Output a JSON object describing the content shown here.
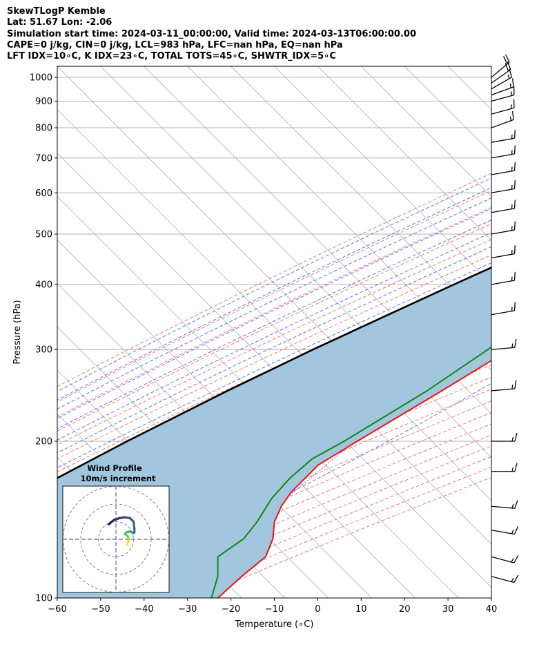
{
  "header": {
    "line1": "SkewTLogP Kemble",
    "line2": "Lat: 51.67   Lon: -2.06",
    "line3": "Simulation start time: 2024-03-11_00:00:00, Valid time: 2024-03-13T06:00:00.00",
    "line4": "CAPE=0 j/kg, CIN=0 j/kg, LCL=983 hPa, LFC=nan hPa, EQ=nan hPa",
    "line5": "LFT IDX=10∘C, K IDX=23∘C, TOTAL TOTS=45∘C, SHWTR_IDX=5∘C"
  },
  "chart_data": {
    "type": "line",
    "subtype": "skew-t log-p",
    "xlabel": "Temperature (∘C)",
    "ylabel": "Pressure (hPa)",
    "xlim": [
      -60,
      40
    ],
    "ylim": [
      1050,
      100
    ],
    "y_scale": "log",
    "x_ticks": [
      -60,
      -50,
      -40,
      -30,
      -20,
      -10,
      0,
      10,
      20,
      30,
      40
    ],
    "x_tick_labels": [
      "−60",
      "−50",
      "−40",
      "−30",
      "−20",
      "−10",
      "0",
      "10",
      "20",
      "30",
      "40"
    ],
    "y_ticks": [
      1000,
      900,
      800,
      700,
      600,
      500,
      400,
      300,
      200,
      100
    ],
    "y_tick_labels": [
      "1000",
      "900",
      "800",
      "700",
      "600",
      "500",
      "400",
      "300",
      "200",
      "100"
    ],
    "grid": true,
    "colors": {
      "temperature": "#ee1111",
      "dewpoint": "#118811",
      "parcel": "#000000",
      "shade": "#a2c6de",
      "dry_adiabats": "#f07878",
      "moist_adiabats": "#6a6af0",
      "mixing_ratio": "#9a44b4",
      "isotherms": "#b4b4b4"
    },
    "series": [
      {
        "role": "temperature",
        "points": [
          [
            985,
            10.2
          ],
          [
            950,
            10.5
          ],
          [
            900,
            11.2
          ],
          [
            850,
            11.4
          ],
          [
            800,
            10.8
          ],
          [
            750,
            9.8
          ],
          [
            700,
            8.7
          ],
          [
            650,
            6.6
          ],
          [
            600,
            4.4
          ],
          [
            550,
            3.6
          ],
          [
            500,
            2.7
          ],
          [
            450,
            0.3
          ],
          [
            400,
            -3.2
          ],
          [
            350,
            -7.9
          ],
          [
            300,
            -13.0
          ],
          [
            250,
            -19.1
          ],
          [
            200,
            -27.0
          ],
          [
            180,
            -30.5
          ],
          [
            160,
            -30.5
          ],
          [
            150,
            -29.5
          ],
          [
            140,
            -27.5
          ],
          [
            130,
            -24.0
          ],
          [
            120,
            -21.5
          ],
          [
            110,
            -22.5
          ],
          [
            100,
            -23.0
          ]
        ]
      },
      {
        "role": "dewpoint",
        "points": [
          [
            985,
            9.2
          ],
          [
            950,
            8.8
          ],
          [
            900,
            8.8
          ],
          [
            850,
            7.7
          ],
          [
            800,
            5.5
          ],
          [
            750,
            2.7
          ],
          [
            700,
            0.2
          ],
          [
            650,
            -1.0
          ],
          [
            600,
            -1.6
          ],
          [
            550,
            -1.6
          ],
          [
            500,
            -1.7
          ],
          [
            450,
            -3.5
          ],
          [
            400,
            -8.0
          ],
          [
            350,
            -14.5
          ],
          [
            300,
            -18.0
          ],
          [
            250,
            -22.5
          ],
          [
            200,
            -30.0
          ],
          [
            185,
            -33.3
          ],
          [
            170,
            -34.0
          ],
          [
            155,
            -33.5
          ],
          [
            140,
            -31.5
          ],
          [
            130,
            -30.7
          ],
          [
            120,
            -32.5
          ],
          [
            110,
            -28.0
          ],
          [
            100,
            -24.5
          ]
        ]
      },
      {
        "role": "parcel",
        "points": [
          [
            985,
            10.2
          ],
          [
            983,
            10.1
          ],
          [
            950,
            8.3
          ],
          [
            900,
            5.6
          ],
          [
            850,
            2.7
          ],
          [
            800,
            -0.3
          ],
          [
            750,
            -3.7
          ],
          [
            700,
            -7.3
          ],
          [
            650,
            -11.3
          ],
          [
            600,
            -15.8
          ],
          [
            550,
            -21.0
          ],
          [
            500,
            -26.9
          ],
          [
            450,
            -33.4
          ],
          [
            400,
            -40.8
          ],
          [
            350,
            -49.0
          ],
          [
            300,
            -58.3
          ],
          [
            250,
            -68.5
          ],
          [
            200,
            -80.0
          ],
          [
            150,
            -93.5
          ],
          [
            100,
            -110.5
          ]
        ]
      }
    ],
    "wind_barbs": [
      {
        "p": 1000,
        "speed_kt": 20,
        "dir_deg": 230
      },
      {
        "p": 975,
        "speed_kt": 20,
        "dir_deg": 235
      },
      {
        "p": 950,
        "speed_kt": 15,
        "dir_deg": 240
      },
      {
        "p": 925,
        "speed_kt": 15,
        "dir_deg": 250
      },
      {
        "p": 900,
        "speed_kt": 15,
        "dir_deg": 255
      },
      {
        "p": 850,
        "speed_kt": 15,
        "dir_deg": 255
      },
      {
        "p": 800,
        "speed_kt": 15,
        "dir_deg": 250
      },
      {
        "p": 750,
        "speed_kt": 15,
        "dir_deg": 260
      },
      {
        "p": 700,
        "speed_kt": 15,
        "dir_deg": 260
      },
      {
        "p": 650,
        "speed_kt": 15,
        "dir_deg": 260
      },
      {
        "p": 600,
        "speed_kt": 15,
        "dir_deg": 260
      },
      {
        "p": 550,
        "speed_kt": 15,
        "dir_deg": 260
      },
      {
        "p": 500,
        "speed_kt": 15,
        "dir_deg": 260
      },
      {
        "p": 450,
        "speed_kt": 15,
        "dir_deg": 260
      },
      {
        "p": 400,
        "speed_kt": 15,
        "dir_deg": 260
      },
      {
        "p": 350,
        "speed_kt": 15,
        "dir_deg": 260
      },
      {
        "p": 300,
        "speed_kt": 15,
        "dir_deg": 265
      },
      {
        "p": 250,
        "speed_kt": 15,
        "dir_deg": 265
      },
      {
        "p": 200,
        "speed_kt": 15,
        "dir_deg": 270
      },
      {
        "p": 175,
        "speed_kt": 15,
        "dir_deg": 270
      },
      {
        "p": 150,
        "speed_kt": 15,
        "dir_deg": 275
      },
      {
        "p": 135,
        "speed_kt": 15,
        "dir_deg": 280
      },
      {
        "p": 120,
        "speed_kt": 15,
        "dir_deg": 285
      },
      {
        "p": 110,
        "speed_kt": 15,
        "dir_deg": 285
      }
    ],
    "inset": {
      "title": "Wind Profile",
      "subtitle": "10m/s increment",
      "rings_ms": [
        10,
        20,
        30
      ],
      "hodograph_colormap": [
        "#fde725",
        "#5ec962",
        "#21918c",
        "#3b528b",
        "#440154"
      ],
      "hodograph_points": [
        [
          6.5,
          -3
        ],
        [
          7,
          -1
        ],
        [
          7.5,
          0
        ],
        [
          7,
          1
        ],
        [
          6.5,
          2
        ],
        [
          5,
          3
        ],
        [
          6,
          4
        ],
        [
          8,
          4.5
        ],
        [
          9,
          4
        ],
        [
          10,
          3.5
        ],
        [
          10.5,
          4
        ],
        [
          10.5,
          6
        ],
        [
          10,
          10
        ],
        [
          8,
          12
        ],
        [
          5,
          12.5
        ],
        [
          2,
          12
        ],
        [
          -1,
          11
        ],
        [
          -3,
          9.5
        ],
        [
          -4,
          8.5
        ]
      ]
    }
  }
}
